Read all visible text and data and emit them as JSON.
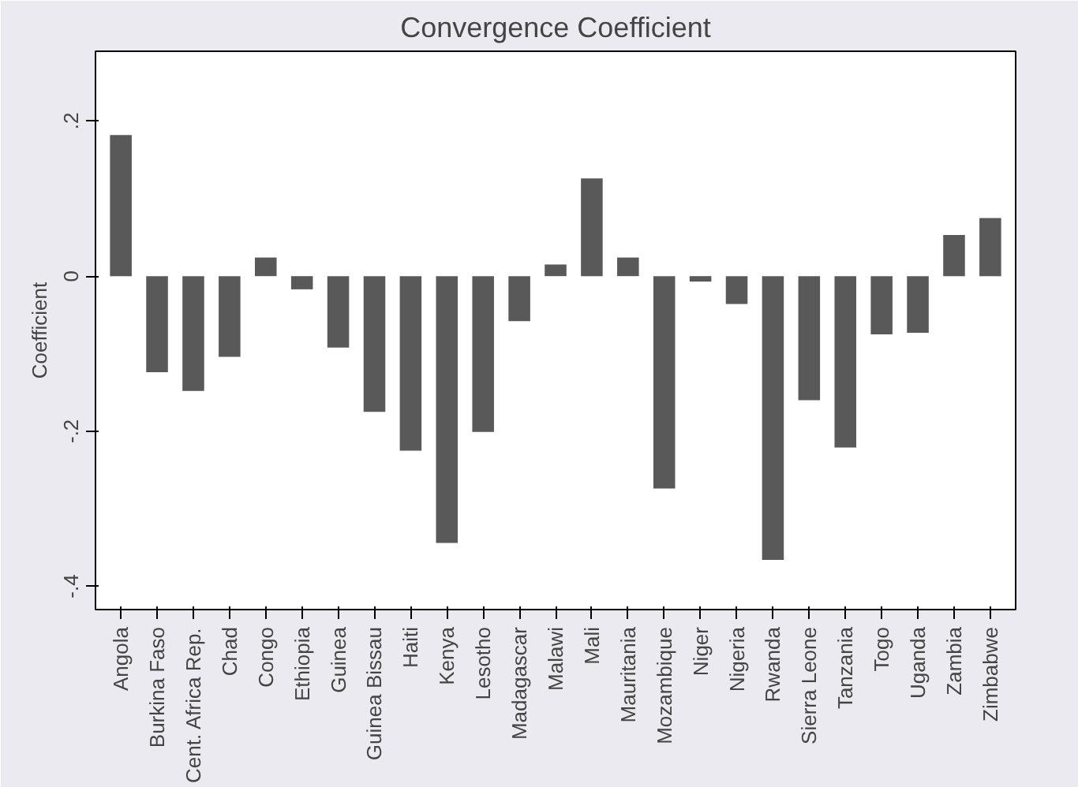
{
  "chart_data": {
    "type": "bar",
    "title": "Convergence Coefficient",
    "ylabel": "Coefficient",
    "categories": [
      "Angola",
      "Burkina Faso",
      "Cent. Africa Rep.",
      "Chad",
      "Congo",
      "Ethiopia",
      "Guinea",
      "Guinea Bissau",
      "Haiti",
      "Kenya",
      "Lesotho",
      "Madagascar",
      "Malawi",
      "Mali",
      "Mauritania",
      "Mozambique",
      "Niger",
      "Nigeria",
      "Rwanda",
      "Sierra Leone",
      "Tanzania",
      "Togo",
      "Uganda",
      "Zambia",
      "Zimbabwe"
    ],
    "values": [
      0.182,
      -0.124,
      -0.148,
      -0.104,
      0.024,
      -0.017,
      -0.092,
      -0.175,
      -0.225,
      -0.344,
      -0.201,
      -0.058,
      0.015,
      0.126,
      0.024,
      -0.274,
      -0.007,
      -0.036,
      -0.366,
      -0.16,
      -0.221,
      -0.075,
      -0.073,
      0.053,
      0.075
    ],
    "color": "#595959",
    "ylim": [
      -0.43,
      0.29
    ],
    "yticks": [
      {
        "value": -0.4,
        "label": "-.4"
      },
      {
        "value": -0.2,
        "label": "-.2"
      },
      0,
      {
        "value": 0.2,
        "label": ".2"
      }
    ],
    "grid": false
  }
}
